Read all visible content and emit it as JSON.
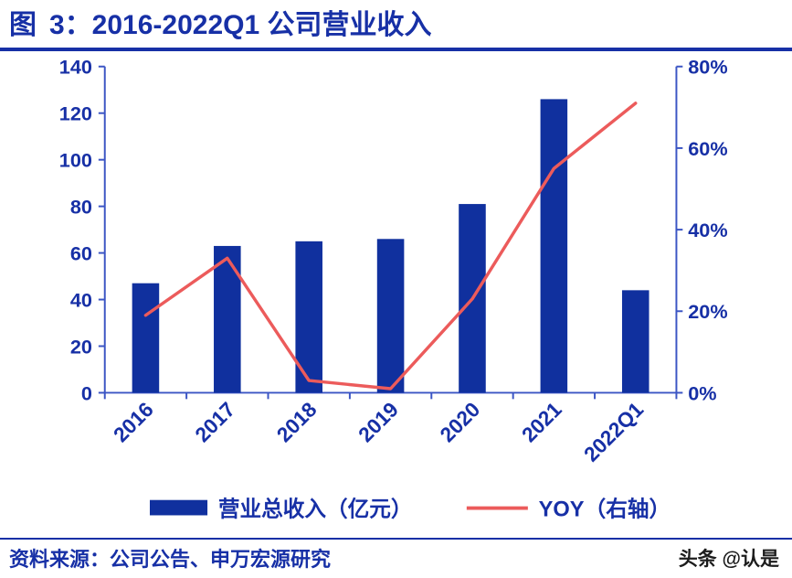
{
  "title": {
    "figure_label": "图",
    "text": "3：2016-2022Q1 公司营业收入"
  },
  "chart_data": {
    "type": "bar",
    "combo": "bar+line dual-axis",
    "title": "2016-2022Q1 公司营业收入",
    "categories": [
      "2016",
      "2017",
      "2018",
      "2019",
      "2020",
      "2021",
      "2022Q1"
    ],
    "series": [
      {
        "name": "营业总收入（亿元）",
        "type": "bar",
        "axis": "left",
        "color": "#10309E",
        "values": [
          47,
          63,
          65,
          66,
          81,
          126,
          44
        ]
      },
      {
        "name": "YOY（右轴）",
        "type": "line",
        "axis": "right",
        "unit": "%",
        "color": "#EC5B5B",
        "values": [
          19,
          33,
          3,
          1,
          23,
          55,
          71
        ]
      }
    ],
    "left_axis": {
      "min": 0,
      "max": 140,
      "step": 20,
      "ticks": [
        "0",
        "20",
        "40",
        "60",
        "80",
        "100",
        "120",
        "140"
      ]
    },
    "right_axis": {
      "min": 0,
      "max": 80,
      "step": 20,
      "ticks": [
        "0%",
        "20%",
        "40%",
        "60%",
        "80%"
      ]
    },
    "axis_color": "#3B55C4",
    "grid": false,
    "legend_position": "bottom"
  },
  "footer": {
    "source": "资料来源：公司公告、申万宏源研究",
    "watermark": "头条 @认是"
  }
}
